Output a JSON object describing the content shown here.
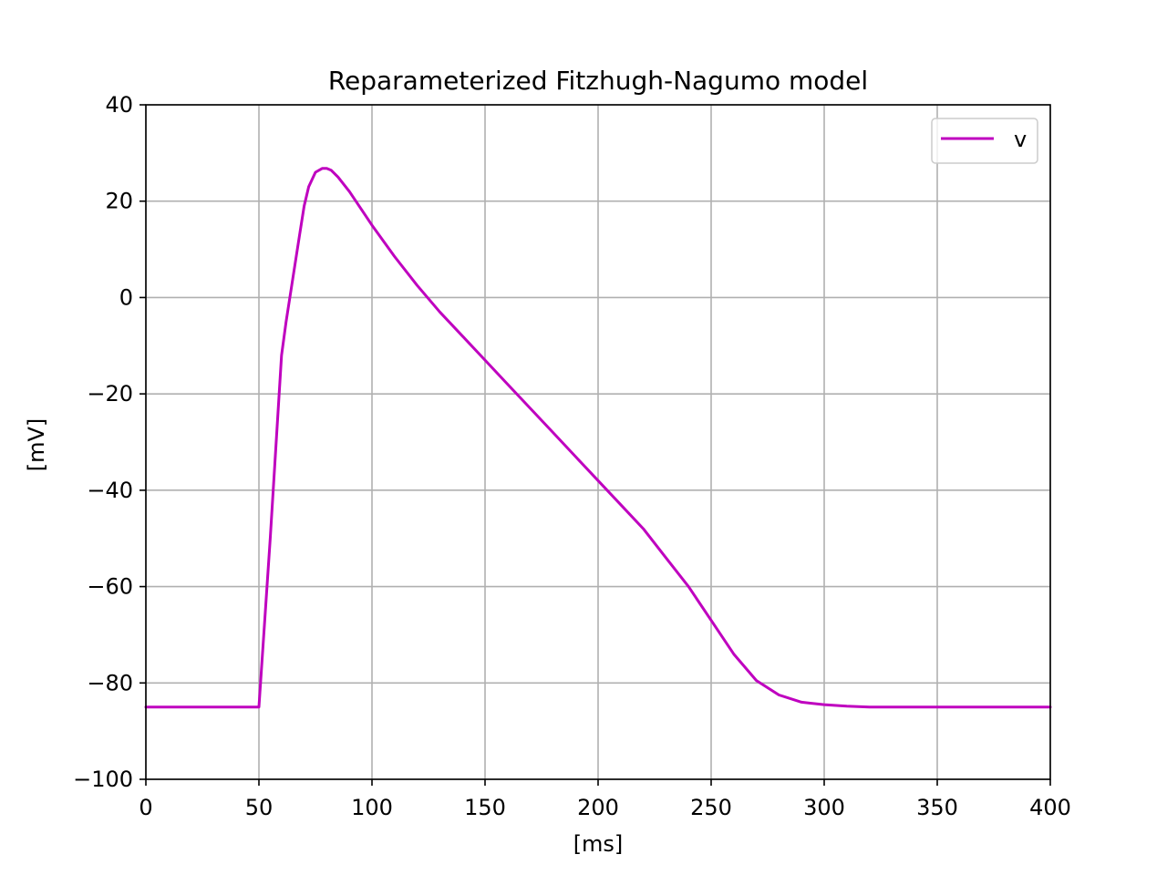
{
  "chart_data": {
    "type": "line",
    "title": "Reparameterized Fitzhugh-Nagumo model",
    "xlabel": "[ms]",
    "ylabel": "[mV]",
    "xlim": [
      0,
      400
    ],
    "ylim": [
      -100,
      40
    ],
    "xticks": [
      0,
      50,
      100,
      150,
      200,
      250,
      300,
      350,
      400
    ],
    "yticks": [
      -100,
      -80,
      -60,
      -40,
      -20,
      0,
      20,
      40
    ],
    "xtick_labels": [
      "0",
      "50",
      "100",
      "150",
      "200",
      "250",
      "300",
      "350",
      "400"
    ],
    "ytick_labels": [
      "−100",
      "−80",
      "−60",
      "−40",
      "−20",
      "0",
      "20",
      "40"
    ],
    "grid": true,
    "legend": "top-right",
    "series": [
      {
        "name": "v",
        "color": "#bf00bf",
        "x": [
          0,
          50,
          55,
          60,
          62,
          65,
          68,
          70,
          72,
          75,
          78,
          80,
          82,
          85,
          90,
          95,
          100,
          110,
          120,
          130,
          140,
          150,
          160,
          170,
          180,
          190,
          200,
          210,
          220,
          230,
          240,
          250,
          260,
          270,
          280,
          290,
          300,
          310,
          320,
          330,
          340,
          350,
          360,
          380,
          400
        ],
        "y": [
          -85,
          -85,
          -50,
          -12,
          -5,
          4,
          13,
          19,
          23,
          26,
          26.8,
          26.8,
          26.4,
          25,
          22,
          18.5,
          15,
          8.5,
          2.5,
          -3,
          -8,
          -13,
          -18,
          -23,
          -28,
          -33,
          -38,
          -43,
          -48,
          -54,
          -60,
          -67,
          -74,
          -79.5,
          -82.5,
          -84,
          -84.5,
          -84.8,
          -85,
          -85,
          -85,
          -85,
          -85,
          -85,
          -85
        ]
      }
    ]
  }
}
